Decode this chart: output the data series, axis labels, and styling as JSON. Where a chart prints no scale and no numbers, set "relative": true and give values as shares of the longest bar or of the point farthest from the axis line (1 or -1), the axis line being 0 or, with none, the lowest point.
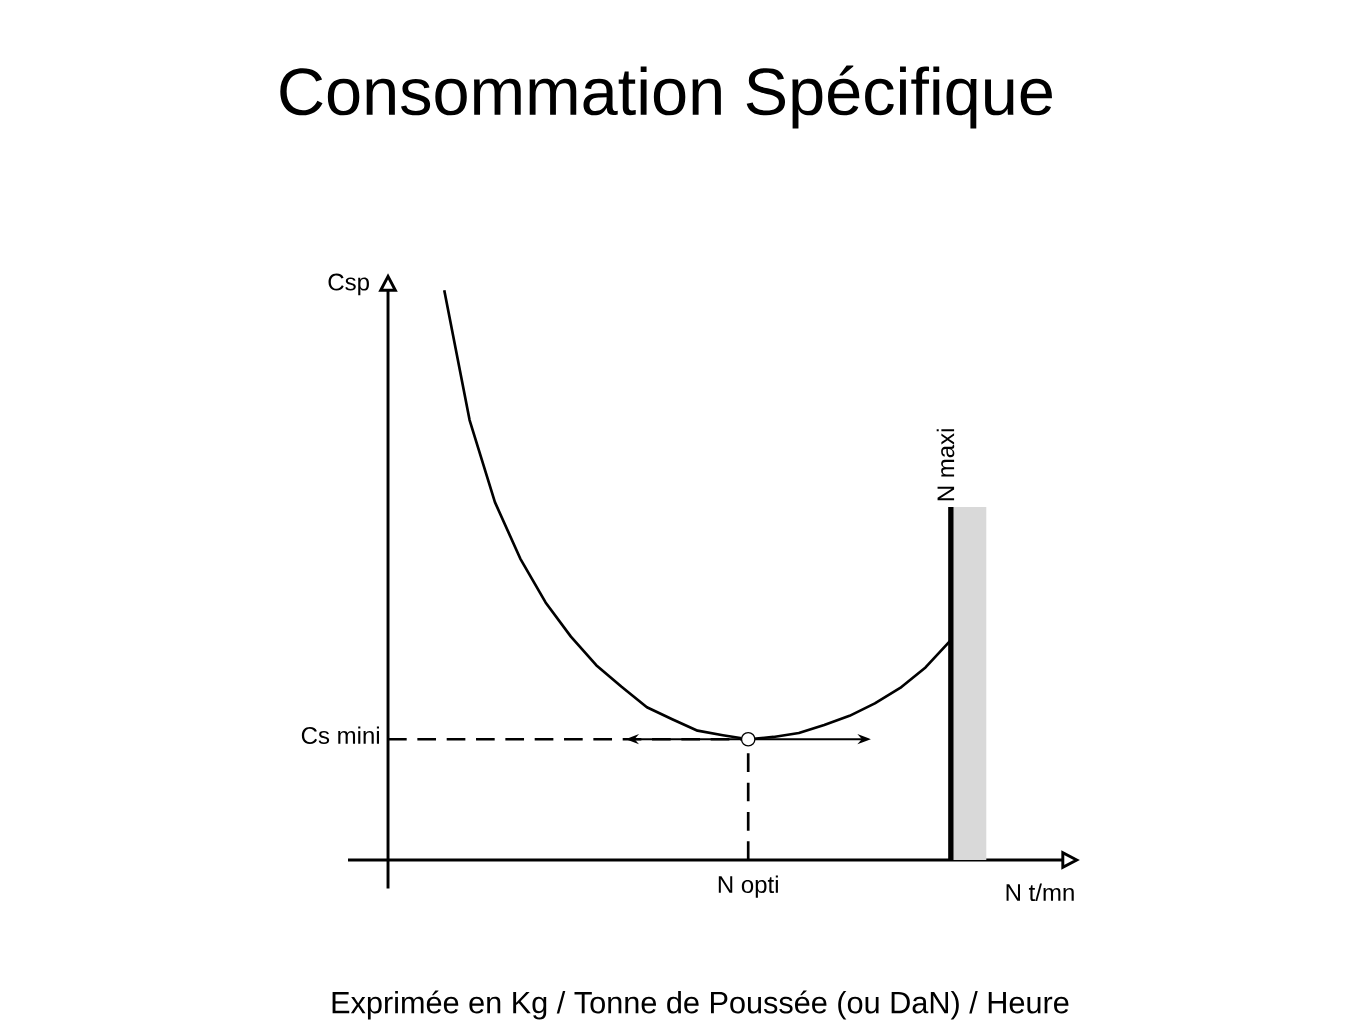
{
  "chart_data": {
    "type": "line",
    "title": "Consommation Spécifique",
    "xlabel": "N t/mn",
    "ylabel": "Csp",
    "relative": true,
    "categories": [
      null,
      null,
      null,
      null,
      null,
      null,
      null,
      null,
      null,
      null,
      null,
      null,
      null,
      null,
      null,
      null,
      null,
      null,
      null,
      null,
      null
    ],
    "series": [
      {
        "color": "#000000",
        "values": [
          1.0,
          0.772,
          0.628,
          0.529,
          0.452,
          0.392,
          0.342,
          0.304,
          0.268,
          0.247,
          0.227,
          0.219,
          0.212,
          0.216,
          0.223,
          0.237,
          0.253,
          0.275,
          0.302,
          0.338,
          0.386
        ]
      }
    ],
    "ref_lines": [
      {
        "axis": "y",
        "value": 0.212,
        "label": "Cs mini",
        "line_style": "dashed",
        "color": "#000000"
      },
      {
        "axis": "x",
        "label": "N opti",
        "line_style": "dashed",
        "color": "#000000"
      },
      {
        "axis": "x",
        "label": "N maxi",
        "line_style": "solid",
        "color": "#000000"
      }
    ],
    "annotations": [
      "Exprimée en Kg  / Tonne de Poussée (ou DaN) / Heure"
    ]
  }
}
